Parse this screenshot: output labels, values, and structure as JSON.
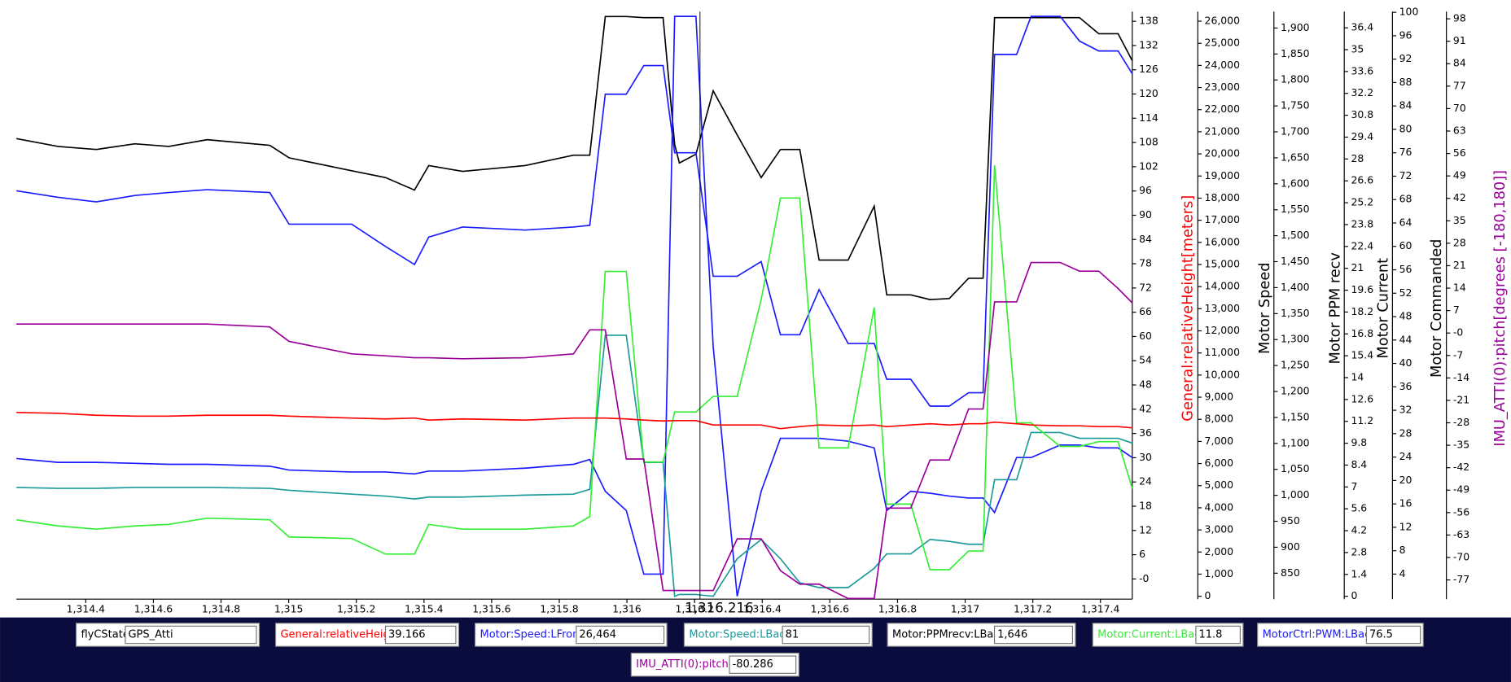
{
  "chart_data": {
    "type": "line",
    "xlim": [
      1314.195,
      1317.494
    ],
    "xticks": [
      {
        "value": 1314.4,
        "label": "1,314.4"
      },
      {
        "value": 1314.6,
        "label": "1,314.6"
      },
      {
        "value": 1314.8,
        "label": "1,314.8"
      },
      {
        "value": 1315,
        "label": "1,315"
      },
      {
        "value": 1315.2,
        "label": "1,315.2"
      },
      {
        "value": 1315.4,
        "label": "1,315.4"
      },
      {
        "value": 1315.6,
        "label": "1,315.6"
      },
      {
        "value": 1315.8,
        "label": "1,315.8"
      },
      {
        "value": 1316,
        "label": "1,316"
      },
      {
        "value": 1316.2,
        "label": "1,316.2"
      },
      {
        "value": 1316.4,
        "label": "1,316.4"
      },
      {
        "value": 1316.6,
        "label": "1,316.6"
      },
      {
        "value": 1316.8,
        "label": "1,316.8"
      },
      {
        "value": 1317,
        "label": "1,317"
      },
      {
        "value": 1317.2,
        "label": "1,317.2"
      },
      {
        "value": 1317.4,
        "label": "1,317.4"
      }
    ],
    "cursor": {
      "value": 1316.216,
      "label": "1,316.216"
    },
    "x": [
      1314.195,
      1314.318,
      1314.431,
      1314.545,
      1314.645,
      1314.759,
      1314.944,
      1315.001,
      1315.186,
      1315.286,
      1315.372,
      1315.414,
      1315.514,
      1315.699,
      1315.842,
      1315.89,
      1315.936,
      1315.998,
      1316.05,
      1316.107,
      1316.141,
      1316.155,
      1316.204,
      1316.255,
      1316.326,
      1316.397,
      1316.454,
      1316.511,
      1316.568,
      1316.654,
      1316.731,
      1316.768,
      1316.839,
      1316.896,
      1316.953,
      1317.01,
      1317.053,
      1317.087,
      1317.152,
      1317.195,
      1317.281,
      1317.338,
      1317.395,
      1317.452,
      1317.494
    ],
    "axes": [
      {
        "label": "General:relativeHeight[meters]",
        "color": "#ff0000",
        "ylim": [
          -5,
          140.4
        ],
        "yticks": [
          {
            "value": 0,
            "label": "-0"
          },
          6,
          12,
          18,
          24,
          30,
          36,
          42,
          48,
          54,
          60,
          66,
          72,
          78,
          84,
          90,
          96,
          102,
          108,
          114,
          120,
          126,
          132,
          138
        ]
      },
      {
        "label": "Motor Speed",
        "color": "#000000",
        "ylim": [
          -131,
          26435
        ],
        "yticks": [
          0,
          {
            "value": 1000,
            "label": "1,000"
          },
          {
            "value": 2000,
            "label": "2,000"
          },
          {
            "value": 3000,
            "label": "3,000"
          },
          {
            "value": 4000,
            "label": "4,000"
          },
          {
            "value": 5000,
            "label": "5,000"
          },
          {
            "value": 6000,
            "label": "6,000"
          },
          {
            "value": 7000,
            "label": "7,000"
          },
          {
            "value": 8000,
            "label": "8,000"
          },
          {
            "value": 9000,
            "label": "9,000"
          },
          {
            "value": 10000,
            "label": "10,000"
          },
          {
            "value": 11000,
            "label": "11,000"
          },
          {
            "value": 12000,
            "label": "12,000"
          },
          {
            "value": 13000,
            "label": "13,000"
          },
          {
            "value": 14000,
            "label": "14,000"
          },
          {
            "value": 15000,
            "label": "15,000"
          },
          {
            "value": 16000,
            "label": "16,000"
          },
          {
            "value": 17000,
            "label": "17,000"
          },
          {
            "value": 18000,
            "label": "18,000"
          },
          {
            "value": 19000,
            "label": "19,000"
          },
          {
            "value": 20000,
            "label": "20,000"
          },
          {
            "value": 21000,
            "label": "21,000"
          },
          {
            "value": 22000,
            "label": "22,000"
          },
          {
            "value": 23000,
            "label": "23,000"
          },
          {
            "value": 24000,
            "label": "24,000"
          },
          {
            "value": 25000,
            "label": "25,000"
          },
          {
            "value": 26000,
            "label": "26,000"
          }
        ]
      },
      {
        "label": "Motor PPM recv",
        "color": "#000000",
        "ylim": [
          800,
          1931.7
        ],
        "yticks": [
          850,
          900,
          950,
          {
            "value": 1000,
            "label": "1,000"
          },
          {
            "value": 1050,
            "label": "1,050"
          },
          {
            "value": 1100,
            "label": "1,100"
          },
          {
            "value": 1150,
            "label": "1,150"
          },
          {
            "value": 1200,
            "label": "1,200"
          },
          {
            "value": 1250,
            "label": "1,250"
          },
          {
            "value": 1300,
            "label": "1,300"
          },
          {
            "value": 1350,
            "label": "1,350"
          },
          {
            "value": 1400,
            "label": "1,400"
          },
          {
            "value": 1450,
            "label": "1,450"
          },
          {
            "value": 1500,
            "label": "1,500"
          },
          {
            "value": 1550,
            "label": "1,550"
          },
          {
            "value": 1600,
            "label": "1,600"
          },
          {
            "value": 1650,
            "label": "1,650"
          },
          {
            "value": 1700,
            "label": "1,700"
          },
          {
            "value": 1750,
            "label": "1,750"
          },
          {
            "value": 1800,
            "label": "1,800"
          },
          {
            "value": 1850,
            "label": "1,850"
          },
          {
            "value": 1900,
            "label": "1,900"
          }
        ]
      },
      {
        "label": "Motor Current",
        "color": "#000000",
        "ylim": [
          -0.185,
          37.44
        ],
        "yticks": [
          0,
          1.4,
          2.8,
          4.2,
          5.6,
          7,
          8.4,
          9.8,
          11.2,
          12.6,
          14,
          15.4,
          16.8,
          18.2,
          19.6,
          21,
          22.4,
          23.8,
          25.2,
          26.6,
          28,
          29.4,
          30.8,
          32.2,
          33.6,
          35,
          36.4
        ]
      },
      {
        "label": "Motor Commanded",
        "color": "#000000",
        "ylim": [
          -0.28,
          100.13
        ],
        "yticks": [
          4,
          8,
          12,
          16,
          20,
          24,
          28,
          32,
          36,
          40,
          44,
          48,
          52,
          56,
          60,
          64,
          68,
          72,
          76,
          80,
          84,
          88,
          92,
          96,
          100
        ]
      },
      {
        "label": "IMU_ATTI(0):pitch[degrees [-180,180]]",
        "color": "#990099",
        "ylim": [
          -83,
          100.26
        ],
        "yticks": [
          -77,
          -70,
          -63,
          -56,
          -49,
          -42,
          -35,
          -28,
          -21,
          -14,
          -7,
          {
            "value": 0,
            "label": "-0"
          },
          7,
          14,
          21,
          28,
          35,
          42,
          49,
          56,
          63,
          70,
          77,
          84,
          91,
          98
        ]
      }
    ],
    "series": [
      {
        "color": "#000000",
        "axis": 2,
        "values": [
          1687,
          1672,
          1666,
          1677,
          1672,
          1685,
          1674,
          1650,
          1625,
          1612,
          1588,
          1635,
          1624,
          1635,
          1655,
          1655,
          1922,
          1922,
          1920,
          1920,
          1676,
          1640,
          1657,
          1779,
          1694,
          1612,
          1666,
          1666,
          1453,
          1453,
          1557,
          1386,
          1386,
          1377,
          1379,
          1418,
          1418,
          1920,
          1920,
          1920,
          1920,
          1920,
          1889,
          1889,
          1837
        ]
      },
      {
        "color": "#1a1aff",
        "axis": 4,
        "values": [
          69.5,
          68.4,
          67.6,
          68.7,
          69.2,
          69.7,
          69.2,
          63.8,
          63.8,
          60.0,
          56.9,
          61.6,
          63.3,
          62.8,
          63.3,
          63.6,
          86.0,
          86.0,
          90.9,
          90.9,
          76.0,
          76.0,
          76.0,
          54.9,
          54.9,
          57.4,
          44.9,
          44.9,
          52.6,
          43.4,
          43.4,
          37.3,
          37.3,
          32.7,
          32.7,
          35.0,
          35.0,
          92.8,
          92.8,
          99.3,
          99.3,
          95.1,
          93.4,
          93.4,
          89.5
        ]
      },
      {
        "color": "#1a1aff",
        "axis": 1,
        "values": [
          6228,
          6054,
          6054,
          6011,
          5967,
          5967,
          5880,
          5706,
          5619,
          5619,
          5532,
          5662,
          5662,
          5793,
          5967,
          6185,
          4748,
          3877,
          1002,
          1002,
          26218,
          26218,
          26218,
          11280,
          0,
          4748,
          7143,
          7143,
          7143,
          7012,
          6707,
          3877,
          4748,
          4661,
          4530,
          4443,
          4443,
          3790,
          6272,
          6272,
          6838,
          6838,
          6707,
          6707,
          6272
        ]
      },
      {
        "color": "#1a9a9a",
        "axis": 1,
        "values": [
          4922,
          4878,
          4878,
          4922,
          4922,
          4922,
          4878,
          4791,
          4617,
          4530,
          4399,
          4486,
          4486,
          4573,
          4617,
          4835,
          11803,
          11803,
          6054,
          6054,
          0,
          81,
          81,
          0,
          1699,
          2570,
          1699,
          610,
          392,
          392,
          1264,
          1917,
          1917,
          2570,
          2483,
          2352,
          2352,
          5270,
          5270,
          7404,
          7404,
          7143,
          7143,
          7143,
          6925
        ]
      },
      {
        "color": "#33ee33",
        "axis": 3,
        "values": [
          4.9,
          4.5,
          4.3,
          4.5,
          4.6,
          5.0,
          4.9,
          3.8,
          3.7,
          2.7,
          2.7,
          4.6,
          4.3,
          4.3,
          4.5,
          5.1,
          20.8,
          20.8,
          8.6,
          8.6,
          11.8,
          11.8,
          11.8,
          12.8,
          12.8,
          19.0,
          25.5,
          25.5,
          9.5,
          9.5,
          18.5,
          5.9,
          5.9,
          1.7,
          1.7,
          2.9,
          2.9,
          27.6,
          11.1,
          11.1,
          9.6,
          9.6,
          9.9,
          9.9,
          6.9
        ]
      },
      {
        "color": "#990099",
        "axis": 5,
        "values": [
          2.8,
          2.8,
          2.8,
          2.8,
          2.8,
          2.8,
          1.9,
          -2.6,
          -6.5,
          -7.1,
          -7.7,
          -7.7,
          -8.0,
          -7.7,
          -6.5,
          1.0,
          1.0,
          -39.3,
          -39.3,
          -80.3,
          -80.3,
          -80.3,
          -80.3,
          -80.3,
          -64.2,
          -64.2,
          -74.1,
          -78.3,
          -78.3,
          -82.8,
          -82.8,
          -54.6,
          -54.6,
          -39.6,
          -39.6,
          -23.7,
          -23.7,
          9.7,
          9.7,
          22.0,
          22.0,
          19.3,
          19.3,
          13.9,
          9.4
        ]
      },
      {
        "color": "#ff0000",
        "axis": 0,
        "values": [
          41.2,
          41.0,
          40.5,
          40.3,
          40.3,
          40.5,
          40.5,
          40.3,
          39.8,
          39.6,
          39.8,
          39.3,
          39.6,
          39.3,
          39.8,
          39.8,
          39.8,
          39.6,
          39.3,
          39.1,
          39.2,
          39.2,
          39.2,
          38.1,
          38.1,
          38.1,
          37.2,
          37.7,
          38.1,
          37.9,
          38.1,
          37.7,
          38.1,
          38.4,
          38.1,
          38.4,
          38.4,
          38.8,
          38.4,
          38.1,
          37.9,
          37.9,
          37.7,
          37.7,
          37.4
        ]
      }
    ]
  },
  "readouts": [
    {
      "label": "flyCState",
      "value": "GPS_Atti",
      "color": "#000000"
    },
    {
      "label": "General:relativeHeight",
      "value": "39.166",
      "color": "#ff0000"
    },
    {
      "label": "Motor:Speed:LFront",
      "value": "26,464",
      "color": "#1a1aff"
    },
    {
      "label": "Motor:Speed:LBack",
      "value": "81",
      "color": "#1a9a9a"
    },
    {
      "label": "Motor:PPMrecv:LBack",
      "value": "1,646",
      "color": "#000000"
    },
    {
      "label": "Motor:Current:LBack",
      "value": "11.8",
      "color": "#33ee33"
    },
    {
      "label": "MotorCtrl:PWM:LBack",
      "value": "76.5",
      "color": "#1a1aff"
    },
    {
      "label": "IMU_ATTI(0):pitch",
      "value": "-80.286",
      "color": "#990099"
    }
  ]
}
